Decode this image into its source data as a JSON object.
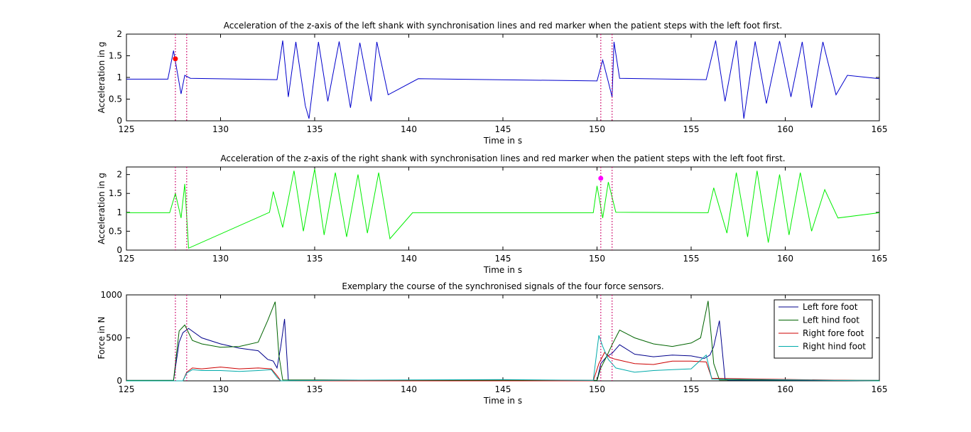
{
  "chart_data": [
    {
      "type": "line",
      "title": "Acceleration of the z-axis of the left shank with synchronisation lines and red marker when the patient steps with the left foot first.",
      "xlabel": "Time in s",
      "ylabel": "Acceleration in g",
      "xlim": [
        125,
        165
      ],
      "ylim": [
        0,
        2
      ],
      "xticks": [
        125,
        130,
        135,
        140,
        145,
        150,
        155,
        160,
        165
      ],
      "xticklabels": [
        "125",
        "130",
        "135",
        "140",
        "145",
        "150",
        "155",
        "160",
        "165"
      ],
      "yticks": [
        0,
        0.5,
        1,
        1.5,
        2
      ],
      "yticklabels": [
        "0",
        "0.5",
        "1",
        "1.5",
        "2"
      ],
      "grid": false,
      "series_color": "#0000cc",
      "sync_lines": {
        "x": [
          127.6,
          128.2,
          150.2,
          150.8
        ],
        "color": "#cc0066",
        "style": "dotted"
      },
      "marker": {
        "x": 127.6,
        "y": 1.43,
        "color": "#ff0000"
      },
      "series": [
        {
          "x": [
            125,
            127.2,
            127.5,
            127.9,
            128.1,
            128.4,
            133.0,
            133.3,
            133.6,
            134.0,
            134.5,
            134.7,
            135.2,
            135.7,
            136.3,
            136.9,
            137.4,
            138.0,
            138.3,
            138.9,
            140.5,
            150.0,
            150.3,
            150.6,
            150.8,
            150.9,
            151.2,
            155.8,
            156.3,
            156.8,
            157.4,
            157.8,
            158.4,
            159.0,
            159.7,
            160.3,
            160.9,
            161.4,
            162.0,
            162.7,
            163.3,
            165
          ],
          "values": [
            0.96,
            0.96,
            1.62,
            0.62,
            1.05,
            0.98,
            0.95,
            1.85,
            0.55,
            1.82,
            0.35,
            0.05,
            1.82,
            0.45,
            1.83,
            0.3,
            1.8,
            0.45,
            1.82,
            0.6,
            0.97,
            0.92,
            1.4,
            0.9,
            0.55,
            1.82,
            0.98,
            0.95,
            1.85,
            0.45,
            1.85,
            0.05,
            1.83,
            0.4,
            1.84,
            0.55,
            1.82,
            0.3,
            1.82,
            0.6,
            1.05,
            0.97
          ]
        }
      ]
    },
    {
      "type": "line",
      "title": "Acceleration of the z-axis of the right shank with synchronisation lines and red marker when the patient steps with the left foot first.",
      "xlabel": "Time in s",
      "ylabel": "Acceleration in g",
      "xlim": [
        125,
        165
      ],
      "ylim": [
        0,
        2.2
      ],
      "xticks": [
        125,
        130,
        135,
        140,
        145,
        150,
        155,
        160,
        165
      ],
      "xticklabels": [
        "125",
        "130",
        "135",
        "140",
        "145",
        "150",
        "155",
        "160",
        "165"
      ],
      "yticks": [
        0,
        0.5,
        1,
        1.5,
        2
      ],
      "yticklabels": [
        "0",
        "0.5",
        "1",
        "1.5",
        "2"
      ],
      "grid": false,
      "series_color": "#00ee00",
      "sync_lines": {
        "x": [
          127.6,
          128.2,
          150.2,
          150.8
        ],
        "color": "#cc0066",
        "style": "dotted"
      },
      "marker": {
        "x": 150.2,
        "y": 1.9,
        "color": "#ff00ff"
      },
      "series": [
        {
          "x": [
            125,
            127.3,
            127.6,
            127.9,
            128.1,
            128.3,
            132.6,
            132.8,
            133.3,
            133.9,
            134.4,
            135.0,
            135.5,
            136.1,
            136.7,
            137.3,
            137.8,
            138.4,
            139.0,
            140.2,
            149.8,
            150.0,
            150.3,
            150.6,
            151.0,
            155.9,
            156.2,
            156.9,
            157.4,
            158.0,
            158.5,
            159.1,
            159.7,
            160.2,
            160.8,
            161.4,
            162.1,
            162.8,
            165
          ],
          "values": [
            0.99,
            0.99,
            1.5,
            0.85,
            1.75,
            0.05,
            1.0,
            1.55,
            0.6,
            2.1,
            0.5,
            2.15,
            0.4,
            2.05,
            0.35,
            2.0,
            0.45,
            2.05,
            0.3,
            0.99,
            0.99,
            1.7,
            0.85,
            1.8,
            1.0,
            0.99,
            1.65,
            0.45,
            2.05,
            0.35,
            2.1,
            0.2,
            2.0,
            0.4,
            2.05,
            0.5,
            1.6,
            0.85,
            0.99
          ]
        }
      ]
    },
    {
      "type": "line",
      "title": "Exemplary the course of the synchronised signals of the four force sensors.",
      "xlabel": "Time in s",
      "ylabel": "Force in N",
      "xlim": [
        125,
        165
      ],
      "ylim": [
        0,
        1000
      ],
      "xticks": [
        125,
        130,
        135,
        140,
        145,
        150,
        155,
        160,
        165
      ],
      "xticklabels": [
        "125",
        "130",
        "135",
        "140",
        "145",
        "150",
        "155",
        "160",
        "165"
      ],
      "yticks": [
        0,
        500,
        1000
      ],
      "yticklabels": [
        "0",
        "500",
        "1000"
      ],
      "grid": false,
      "legend_position": "top-right",
      "sync_lines": {
        "x": [
          127.6,
          128.2,
          150.2,
          150.8
        ],
        "color": "#cc0066",
        "style": "dotted"
      },
      "series": [
        {
          "name": "Left fore foot",
          "color": "#00008b",
          "x": [
            125,
            127.5,
            127.8,
            128.0,
            128.3,
            129.0,
            130.0,
            131.0,
            132.0,
            132.5,
            132.8,
            133.0,
            133.2,
            133.4,
            133.6,
            150.0,
            150.2,
            150.5,
            150.8,
            151.2,
            152.0,
            153.0,
            154.0,
            155.0,
            155.7,
            156.0,
            156.2,
            156.5,
            156.8,
            157.0,
            165
          ],
          "values": [
            5,
            5,
            450,
            560,
            610,
            500,
            430,
            380,
            350,
            250,
            230,
            150,
            400,
            720,
            10,
            5,
            200,
            280,
            320,
            420,
            310,
            280,
            300,
            290,
            260,
            300,
            400,
            700,
            20,
            5,
            5
          ]
        },
        {
          "name": "Left hind foot",
          "color": "#006400",
          "x": [
            125,
            127.5,
            127.8,
            128.1,
            128.5,
            129.0,
            130.0,
            131.0,
            132.0,
            132.5,
            132.9,
            133.1,
            133.3,
            150.0,
            150.2,
            150.5,
            150.8,
            151.2,
            152.0,
            153.0,
            154.0,
            155.0,
            155.5,
            155.9,
            156.2,
            156.5,
            165
          ],
          "values": [
            5,
            5,
            580,
            650,
            470,
            430,
            390,
            400,
            450,
            700,
            920,
            300,
            10,
            5,
            150,
            280,
            420,
            590,
            500,
            430,
            400,
            440,
            500,
            930,
            200,
            10,
            5
          ]
        },
        {
          "name": "Right fore foot",
          "color": "#cc0000",
          "x": [
            125,
            128.0,
            128.2,
            128.5,
            129.0,
            130.0,
            131.0,
            132.0,
            132.7,
            133.0,
            133.2,
            149.8,
            150.1,
            150.4,
            150.7,
            151.0,
            152.0,
            153.0,
            154.0,
            155.0,
            155.8,
            156.1,
            165
          ],
          "values": [
            0,
            0,
            100,
            150,
            140,
            160,
            140,
            150,
            140,
            60,
            0,
            0,
            200,
            330,
            270,
            250,
            200,
            190,
            230,
            230,
            220,
            30,
            0
          ]
        },
        {
          "name": "Right hind foot",
          "color": "#00aaaa",
          "x": [
            125,
            128.0,
            128.2,
            128.5,
            129.0,
            130.0,
            131.0,
            132.0,
            132.7,
            133.0,
            133.2,
            137.0,
            145.0,
            149.8,
            150.1,
            150.3,
            150.6,
            151.0,
            152.0,
            153.0,
            154.0,
            155.0,
            155.8,
            156.1,
            165
          ],
          "values": [
            0,
            0,
            90,
            130,
            120,
            120,
            110,
            120,
            130,
            40,
            0,
            8,
            15,
            5,
            530,
            400,
            250,
            150,
            100,
            120,
            130,
            140,
            300,
            20,
            0
          ]
        }
      ]
    }
  ]
}
